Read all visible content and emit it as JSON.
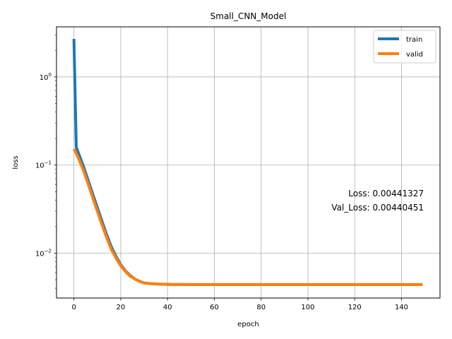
{
  "chart_data": {
    "type": "line",
    "title": "Small_CNN_Model",
    "xlabel": "epoch",
    "ylabel": "loss",
    "xlim": [
      -7.45,
      156.45
    ],
    "ylim": [
      0.0031,
      3.7
    ],
    "yscale": "log",
    "grid": true,
    "legend_position": "top-right",
    "x_ticks": [
      0,
      20,
      40,
      60,
      80,
      100,
      120,
      140
    ],
    "y_ticks": [
      {
        "value": 0.01,
        "base": "10",
        "exp": "−2"
      },
      {
        "value": 0.1,
        "base": "10",
        "exp": "−1"
      },
      {
        "value": 1,
        "base": "10",
        "exp": "0"
      }
    ],
    "series": [
      {
        "name": "train",
        "color": "#1f77b4",
        "x": [
          0,
          1,
          2,
          4,
          6,
          8,
          10,
          12,
          14,
          16,
          18,
          20,
          22,
          24,
          26,
          28,
          30,
          33,
          36,
          40,
          45,
          50,
          60,
          80,
          100,
          120,
          149
        ],
        "y": [
          2.7,
          0.16,
          0.135,
          0.098,
          0.068,
          0.047,
          0.033,
          0.023,
          0.0162,
          0.0118,
          0.0092,
          0.0074,
          0.0063,
          0.0056,
          0.0051,
          0.0048,
          0.0046,
          0.00451,
          0.00446,
          0.00443,
          0.00442,
          0.00441,
          0.00441,
          0.00441,
          0.00441,
          0.00441,
          0.00441
        ]
      },
      {
        "name": "valid",
        "color": "#ff7f0e",
        "x": [
          0,
          1,
          2,
          4,
          6,
          8,
          10,
          12,
          14,
          16,
          18,
          20,
          22,
          24,
          26,
          28,
          30,
          33,
          36,
          40,
          45,
          50,
          60,
          80,
          100,
          120,
          149
        ],
        "y": [
          0.152,
          0.135,
          0.118,
          0.088,
          0.062,
          0.043,
          0.03,
          0.021,
          0.015,
          0.011,
          0.0088,
          0.0072,
          0.0062,
          0.0055,
          0.0051,
          0.0048,
          0.0046,
          0.00451,
          0.00446,
          0.00442,
          0.00441,
          0.0044,
          0.0044,
          0.0044,
          0.0044,
          0.0044,
          0.0044
        ]
      }
    ],
    "annotations": [
      "Loss: 0.00441327",
      "Val_Loss: 0.00440451"
    ]
  }
}
